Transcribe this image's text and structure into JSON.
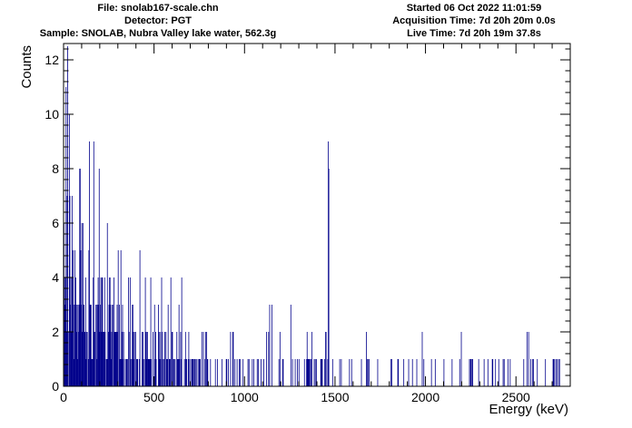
{
  "header": {
    "file": "File: snolab167-scale.chn",
    "detector": "Detector: PGT",
    "sample": "Sample: SNOLAB,  Nubra Valley lake water, 562.3g",
    "started": "Started 06 Oct 2022 11:01:59",
    "acquisition": "Acquisition Time: 7d 20h 20m 0.0s",
    "live": "Live Time: 7d 20h 19m 37.8s"
  },
  "chart_data": {
    "type": "bar",
    "title": "",
    "xlabel": "Energy (keV)",
    "ylabel": "Counts",
    "xlim": [
      0,
      2800
    ],
    "ylim": [
      0,
      12.6
    ],
    "xticks": [
      0,
      500,
      1000,
      1500,
      2000,
      2500
    ],
    "yticks": [
      0,
      2,
      4,
      6,
      8,
      10,
      12
    ],
    "grid": false,
    "legend": "none",
    "bar_color": "#00008b",
    "bin_width_kev": 3,
    "peaks": [
      {
        "x": 20,
        "y": 12.5
      },
      {
        "x": 12,
        "y": 11
      },
      {
        "x": 30,
        "y": 10
      },
      {
        "x": 140,
        "y": 9
      },
      {
        "x": 165,
        "y": 9
      },
      {
        "x": 1461,
        "y": 9
      },
      {
        "x": 1464,
        "y": 8
      },
      {
        "x": 90,
        "y": 8
      },
      {
        "x": 195,
        "y": 8
      },
      {
        "x": 240,
        "y": 6
      },
      {
        "x": 300,
        "y": 5
      },
      {
        "x": 420,
        "y": 5
      },
      {
        "x": 480,
        "y": 4
      },
      {
        "x": 590,
        "y": 4
      },
      {
        "x": 650,
        "y": 4
      },
      {
        "x": 770,
        "y": 2
      },
      {
        "x": 1120,
        "y": 2
      },
      {
        "x": 1735,
        "y": 1
      },
      {
        "x": 2100,
        "y": 1
      },
      {
        "x": 2615,
        "y": 1
      },
      {
        "x": 2725,
        "y": 1
      }
    ]
  }
}
